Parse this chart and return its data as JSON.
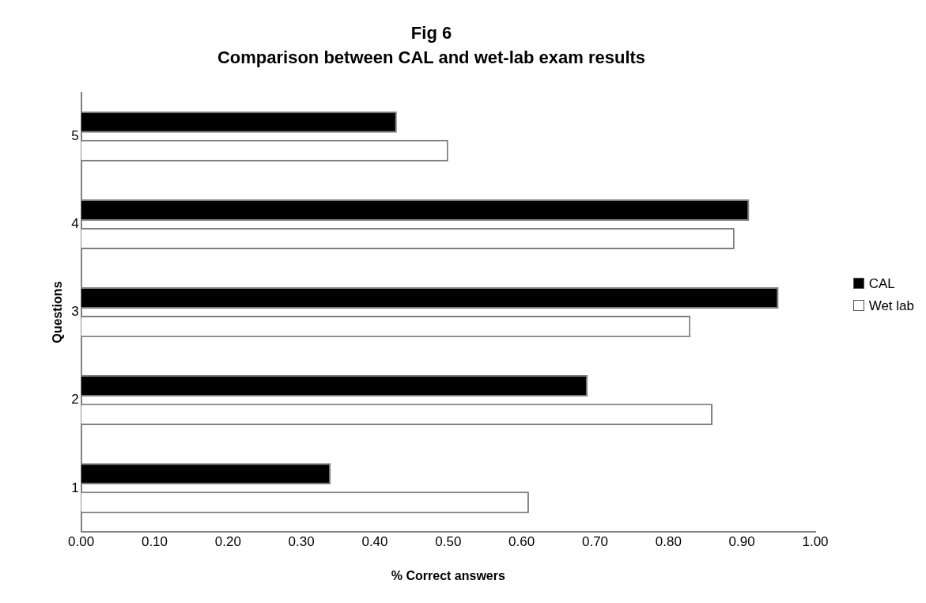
{
  "chart_data": {
    "type": "bar",
    "orientation": "horizontal",
    "title": "Fig 6",
    "subtitle": "Comparison between CAL and wet-lab exam results",
    "xlabel": "% Correct answers",
    "ylabel": "Questions",
    "categories": [
      "5",
      "4",
      "3",
      "2",
      "1"
    ],
    "series": [
      {
        "name": "CAL",
        "color": "#000000",
        "values": [
          0.43,
          0.91,
          0.95,
          0.69,
          0.34
        ]
      },
      {
        "name": "Wet lab",
        "color": "#ffffff",
        "values": [
          0.5,
          0.89,
          0.83,
          0.86,
          0.61
        ]
      }
    ],
    "xlim": [
      0,
      1
    ],
    "xticks": [
      {
        "value": 0,
        "label": "0.00"
      },
      {
        "value": 0.1,
        "label": "0.10"
      },
      {
        "value": 0.2,
        "label": "0.20"
      },
      {
        "value": 0.3,
        "label": "0.30"
      },
      {
        "value": 0.4,
        "label": "0.40"
      },
      {
        "value": 0.5,
        "label": "0.50"
      },
      {
        "value": 0.6,
        "label": "0.60"
      },
      {
        "value": 0.7,
        "label": "0.70"
      },
      {
        "value": 0.8,
        "label": "0.80"
      },
      {
        "value": 0.9,
        "label": "0.90"
      },
      {
        "value": 1,
        "label": "1.00"
      }
    ],
    "grid": false,
    "legend": "right"
  }
}
